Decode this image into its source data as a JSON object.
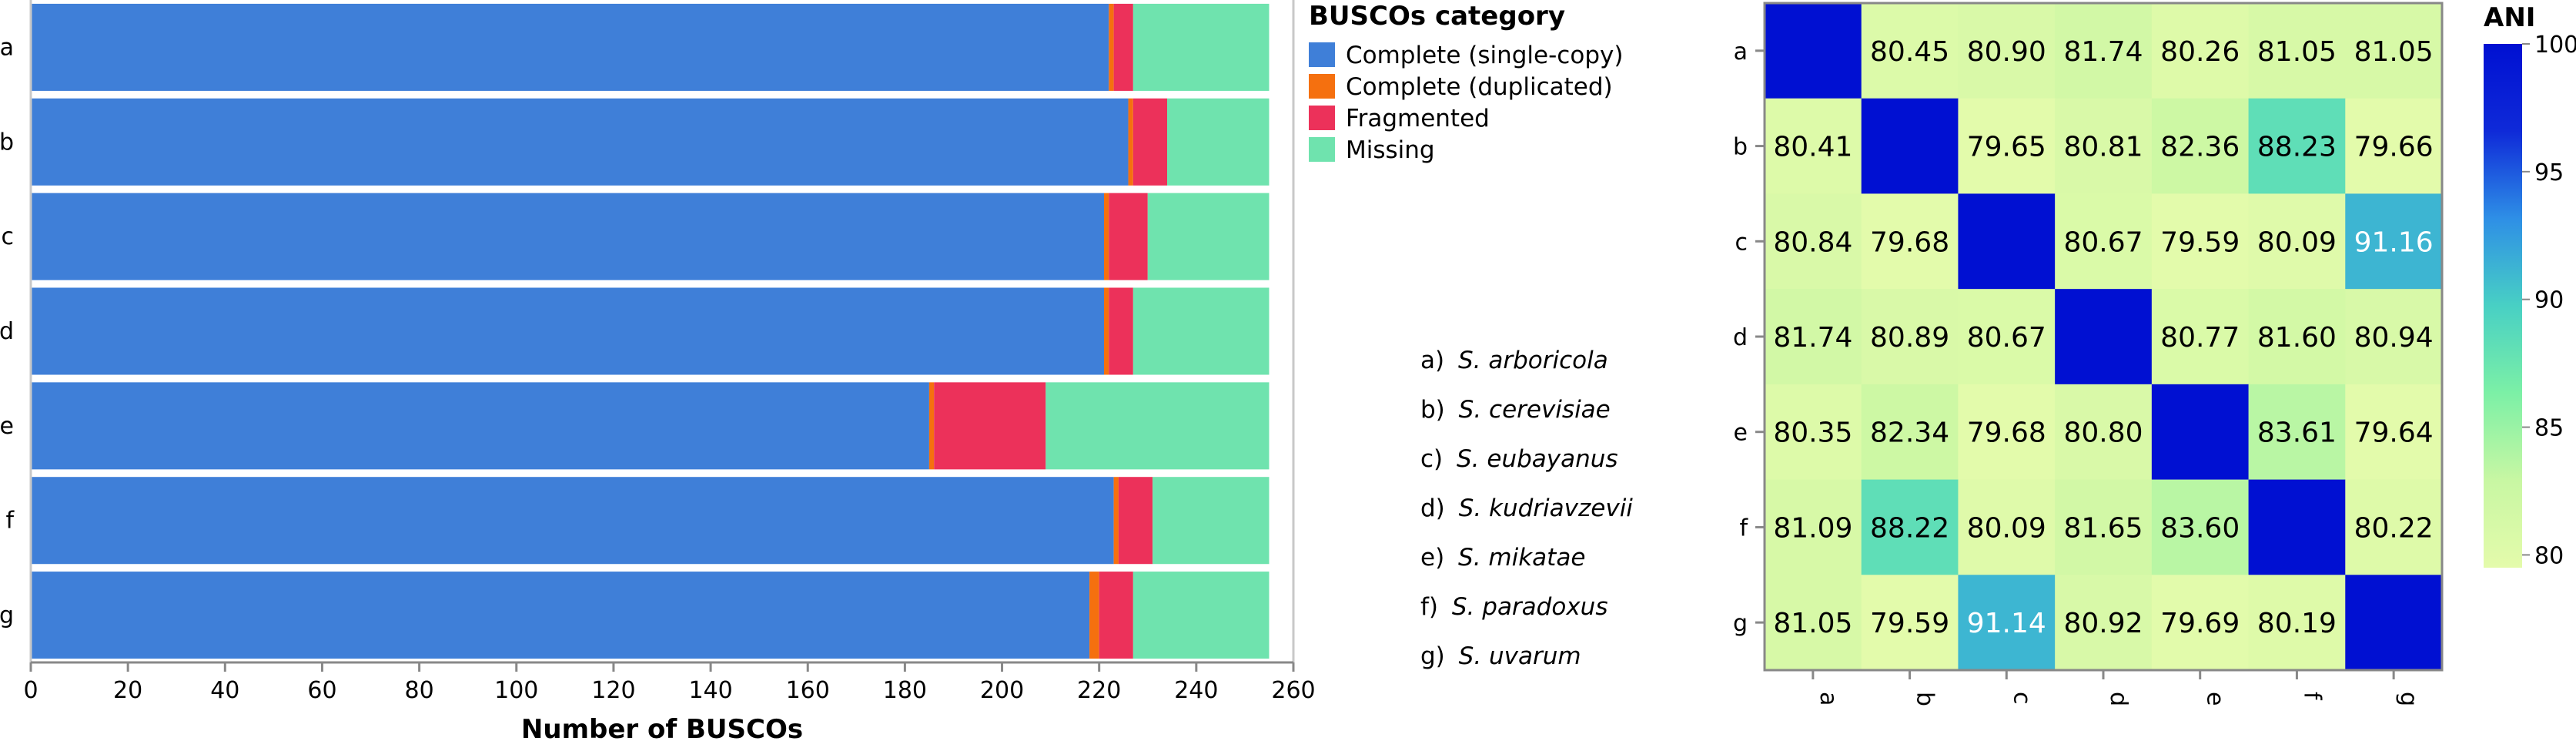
{
  "chart_data": [
    {
      "type": "bar",
      "orientation": "horizontal",
      "stacked": true,
      "categories": [
        "a",
        "b",
        "c",
        "d",
        "e",
        "f",
        "g"
      ],
      "series": [
        {
          "name": "Complete (single-copy)",
          "color": "#3f7fd8",
          "values": [
            222,
            226,
            221,
            221,
            185,
            223,
            218
          ]
        },
        {
          "name": "Complete (duplicated)",
          "color": "#f5700f",
          "values": [
            1,
            1,
            1,
            1,
            1,
            1,
            2
          ]
        },
        {
          "name": "Fragmented",
          "color": "#ec315a",
          "values": [
            4,
            7,
            8,
            5,
            23,
            7,
            7
          ]
        },
        {
          "name": "Missing",
          "color": "#6fe3ae",
          "values": [
            28,
            21,
            25,
            28,
            46,
            24,
            28
          ]
        }
      ],
      "xlabel": "Number of BUSCOs",
      "xlim": [
        0,
        260
      ],
      "xticks": [
        0,
        20,
        40,
        60,
        80,
        100,
        120,
        140,
        160,
        180,
        200,
        220,
        240,
        260
      ],
      "legend": {
        "title": "BUSCOs category",
        "placement": "right"
      },
      "grid": false
    },
    {
      "type": "heatmap",
      "rows": [
        "a",
        "b",
        "c",
        "d",
        "e",
        "f",
        "g"
      ],
      "columns": [
        "a",
        "b",
        "c",
        "d",
        "e",
        "f",
        "g"
      ],
      "values": [
        [
          100,
          80.45,
          80.9,
          81.74,
          80.26,
          81.05,
          81.05
        ],
        [
          80.41,
          100,
          79.65,
          80.81,
          82.36,
          88.23,
          79.66
        ],
        [
          80.84,
          79.68,
          100,
          80.67,
          79.59,
          80.09,
          91.16
        ],
        [
          81.74,
          80.89,
          80.67,
          100,
          80.77,
          81.6,
          80.94
        ],
        [
          80.35,
          82.34,
          79.68,
          80.8,
          100,
          83.61,
          79.64
        ],
        [
          81.09,
          88.22,
          80.09,
          81.65,
          83.6,
          100,
          80.22
        ],
        [
          81.05,
          79.59,
          91.14,
          80.92,
          79.69,
          80.19,
          100
        ]
      ],
      "labels": [
        [
          "",
          "80.45",
          "80.90",
          "81.74",
          "80.26",
          "81.05",
          "81.05"
        ],
        [
          "80.41",
          "",
          "79.65",
          "80.81",
          "82.36",
          "88.23",
          "79.66"
        ],
        [
          "80.84",
          "79.68",
          "",
          "80.67",
          "79.59",
          "80.09",
          "91.16"
        ],
        [
          "81.74",
          "80.89",
          "80.67",
          "",
          "80.77",
          "81.60",
          "80.94"
        ],
        [
          "80.35",
          "82.34",
          "79.68",
          "80.80",
          "",
          "83.61",
          "79.64"
        ],
        [
          "81.09",
          "88.22",
          "80.09",
          "81.65",
          "83.60",
          "",
          "80.22"
        ],
        [
          "81.05",
          "79.59",
          "91.14",
          "80.92",
          "79.69",
          "80.19",
          ""
        ]
      ],
      "colorbar": {
        "title": "ANI",
        "range": [
          79.5,
          100
        ],
        "ticks": [
          80,
          85,
          90,
          95,
          100
        ],
        "placement": "right"
      },
      "colormap": [
        "#e4fbab",
        "#c8f7a3",
        "#7cf0a6",
        "#48d0c4",
        "#2e8fe6",
        "#0f2ad8",
        "#0010d2"
      ]
    }
  ],
  "species_key": [
    {
      "letter": "a)",
      "name": "S. arboricola"
    },
    {
      "letter": "b)",
      "name": "S. cerevisiae"
    },
    {
      "letter": "c)",
      "name": "S. eubayanus"
    },
    {
      "letter": "d)",
      "name": "S. kudriavzevii"
    },
    {
      "letter": "e)",
      "name": "S. mikatae"
    },
    {
      "letter": "f)",
      "name": "S. paradoxus"
    },
    {
      "letter": "g)",
      "name": "S. uvarum"
    }
  ]
}
